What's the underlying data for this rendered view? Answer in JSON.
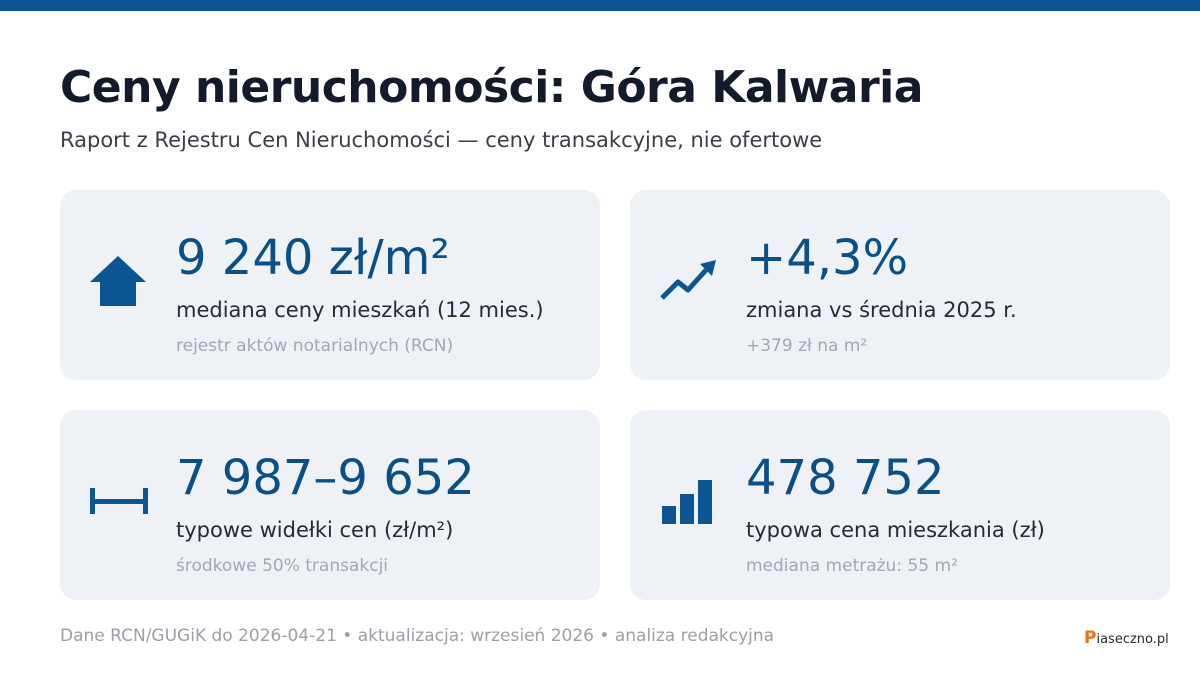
{
  "header": {
    "title": "Ceny nieruchomości: Góra Kalwaria",
    "subtitle": "Raport z Rejestru Cen Nieruchomości — ceny transakcyjne, nie ofertowe"
  },
  "cards": [
    {
      "value": "9 240 zł/m²",
      "label": "mediana ceny mieszkań (12 mies.)",
      "note": "rejestr aktów notarialnych (RCN)"
    },
    {
      "value": "+4,3%",
      "label": "zmiana vs średnia 2025 r.",
      "note": "+379 zł na m²"
    },
    {
      "value": "7 987–9 652",
      "label": "typowe widełki cen (zł/m²)",
      "note": "środkowe 50% transakcji"
    },
    {
      "value": "478 752",
      "label": "typowa cena mieszkania (zł)",
      "note": "mediana metrażu: 55 m²"
    }
  ],
  "footer": {
    "text": "Dane RCN/GUGiK do 2026-04-21 • aktualizacja: wrzesień 2026 • analiza redakcyjna",
    "logo": "Piaseczno.pl"
  }
}
